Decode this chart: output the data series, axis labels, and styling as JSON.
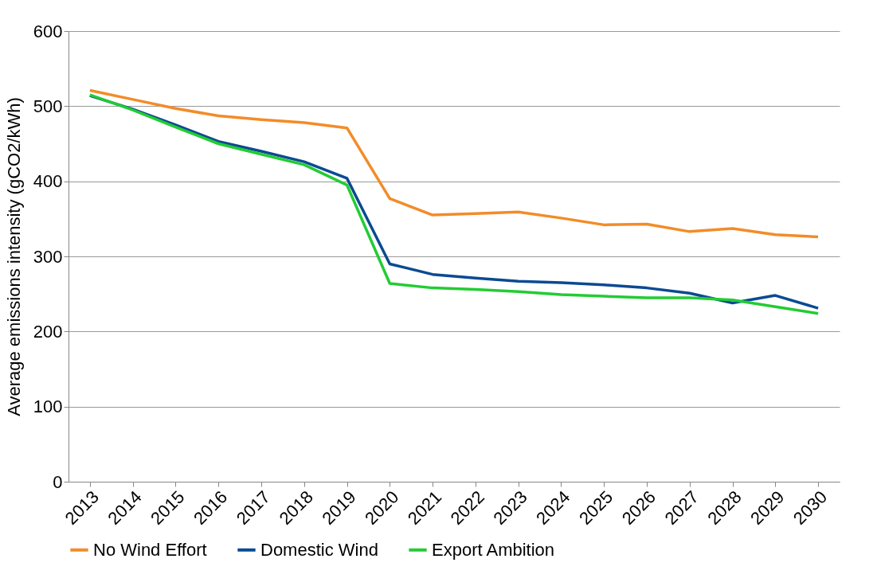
{
  "chart_data": {
    "type": "line",
    "ylabel": "Average emissions intensity (gCO2/kWh)",
    "categories": [
      "2013",
      "2014",
      "2015",
      "2016",
      "2017",
      "2018",
      "2019",
      "2020",
      "2021",
      "2022",
      "2023",
      "2024",
      "2025",
      "2026",
      "2027",
      "2028",
      "2029",
      "2030"
    ],
    "series": [
      {
        "name": "No Wind Effort",
        "color": "#f28c28",
        "values": [
          521,
          509,
          497,
          487,
          482,
          478,
          471,
          377,
          355,
          357,
          359,
          351,
          342,
          343,
          333,
          337,
          329,
          326
        ]
      },
      {
        "name": "Domestic Wind",
        "color": "#0b4a92",
        "values": [
          514,
          496,
          475,
          453,
          440,
          426,
          404,
          290,
          276,
          271,
          267,
          265,
          262,
          258,
          251,
          238,
          248,
          231
        ]
      },
      {
        "name": "Export Ambition",
        "color": "#22cc33",
        "values": [
          515,
          495,
          472,
          450,
          436,
          422,
          395,
          264,
          258,
          256,
          253,
          249,
          247,
          245,
          245,
          242,
          233,
          224
        ]
      }
    ],
    "ylim": [
      0,
      600
    ],
    "yticks": [
      0,
      100,
      200,
      300,
      400,
      500,
      600
    ],
    "grid": "y",
    "legend": "bottom",
    "marker": "none",
    "line_style": "solid"
  }
}
